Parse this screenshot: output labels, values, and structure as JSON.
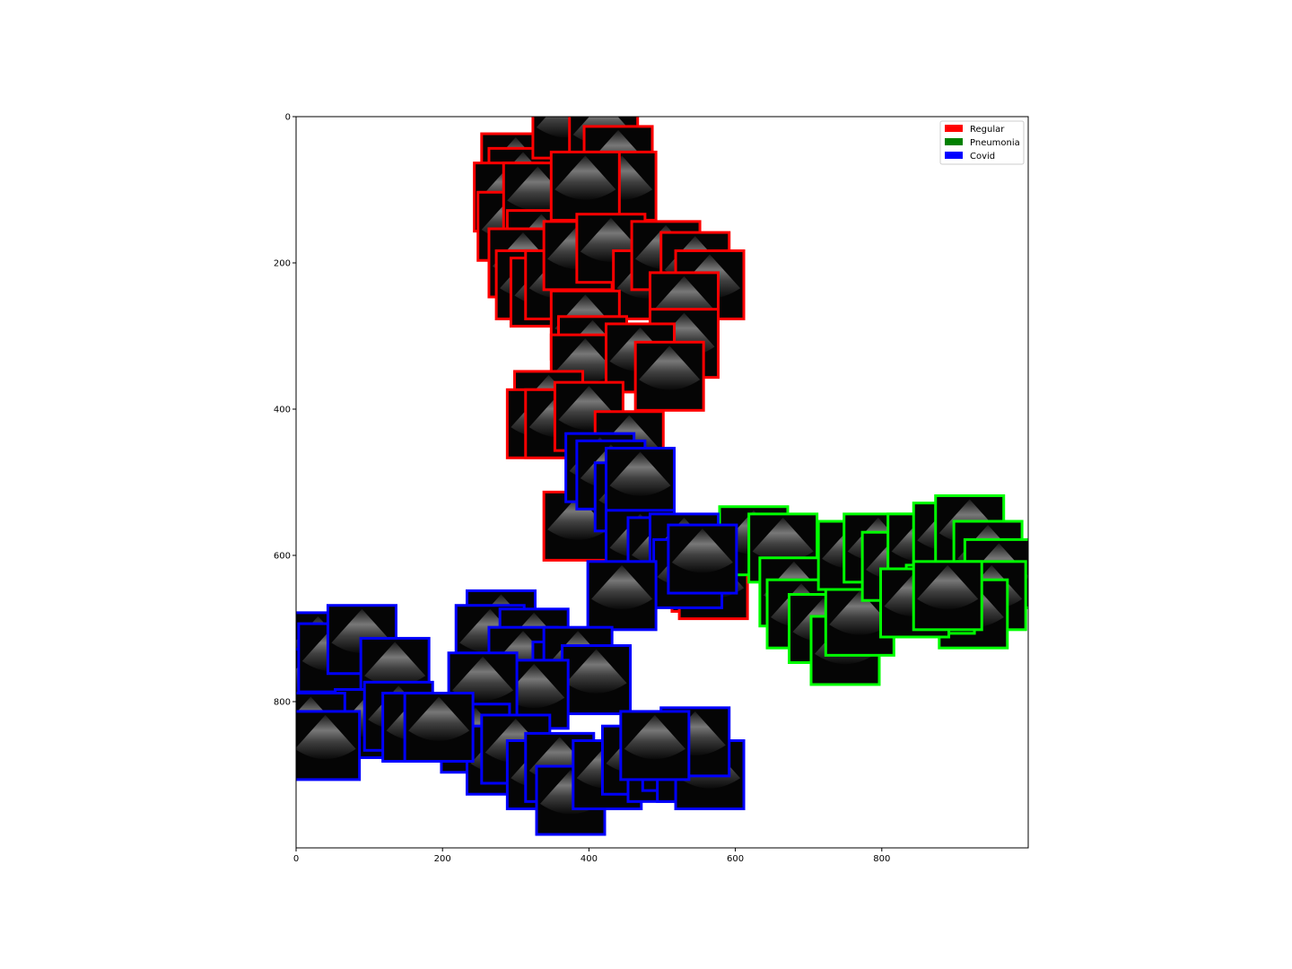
{
  "chart_data": {
    "type": "scatter",
    "title": "",
    "xlabel": "",
    "ylabel": "",
    "xlim": [
      0,
      1000
    ],
    "ylim": [
      0,
      1000
    ],
    "y_inverted": true,
    "xticks": [
      0,
      200,
      400,
      600,
      800
    ],
    "yticks": [
      0,
      200,
      400,
      600,
      800
    ],
    "grid": false,
    "legend_position": "top-right",
    "marker": "image thumbnail with class-colored border",
    "series": [
      {
        "name": "Regular",
        "color": "#ff0000",
        "points": [
          [
            300,
            70
          ],
          [
            310,
            90
          ],
          [
            290,
            110
          ],
          [
            295,
            150
          ],
          [
            330,
            110
          ],
          [
            335,
            175
          ],
          [
            370,
            10
          ],
          [
            420,
            20
          ],
          [
            440,
            60
          ],
          [
            445,
            95
          ],
          [
            395,
            95
          ],
          [
            310,
            200
          ],
          [
            320,
            230
          ],
          [
            340,
            240
          ],
          [
            360,
            230
          ],
          [
            385,
            190
          ],
          [
            430,
            180
          ],
          [
            480,
            230
          ],
          [
            505,
            190
          ],
          [
            545,
            205
          ],
          [
            565,
            230
          ],
          [
            530,
            260
          ],
          [
            530,
            310
          ],
          [
            395,
            285
          ],
          [
            405,
            320
          ],
          [
            395,
            345
          ],
          [
            470,
            330
          ],
          [
            510,
            355
          ],
          [
            345,
            395
          ],
          [
            335,
            420
          ],
          [
            360,
            420
          ],
          [
            400,
            410
          ],
          [
            455,
            450
          ],
          [
            385,
            560
          ],
          [
            560,
            630
          ],
          [
            570,
            640
          ],
          [
            65,
            735
          ],
          [
            35,
            825
          ]
        ]
      },
      {
        "name": "Pneumonia",
        "color": "#00ff00",
        "points": [
          [
            625,
            580
          ],
          [
            665,
            590
          ],
          [
            680,
            650
          ],
          [
            690,
            680
          ],
          [
            720,
            700
          ],
          [
            750,
            730
          ],
          [
            770,
            690
          ],
          [
            760,
            600
          ],
          [
            795,
            590
          ],
          [
            820,
            615
          ],
          [
            855,
            590
          ],
          [
            890,
            575
          ],
          [
            920,
            565
          ],
          [
            945,
            600
          ],
          [
            960,
            625
          ],
          [
            950,
            655
          ],
          [
            925,
            680
          ],
          [
            880,
            660
          ],
          [
            845,
            665
          ],
          [
            890,
            655
          ]
        ]
      },
      {
        "name": "Covid",
        "color": "#0000ff",
        "points": [
          [
            415,
            480
          ],
          [
            430,
            490
          ],
          [
            455,
            520
          ],
          [
            470,
            500
          ],
          [
            470,
            585
          ],
          [
            500,
            595
          ],
          [
            530,
            590
          ],
          [
            535,
            625
          ],
          [
            555,
            605
          ],
          [
            445,
            655
          ],
          [
            280,
            695
          ],
          [
            265,
            715
          ],
          [
            325,
            720
          ],
          [
            310,
            745
          ],
          [
            370,
            765
          ],
          [
            385,
            745
          ],
          [
            410,
            770
          ],
          [
            325,
            790
          ],
          [
            255,
            780
          ],
          [
            245,
            850
          ],
          [
            280,
            880
          ],
          [
            300,
            865
          ],
          [
            30,
            725
          ],
          [
            20,
            775
          ],
          [
            50,
            740
          ],
          [
            90,
            715
          ],
          [
            135,
            760
          ],
          [
            100,
            830
          ],
          [
            20,
            835
          ],
          [
            40,
            860
          ],
          [
            140,
            820
          ],
          [
            165,
            835
          ],
          [
            195,
            835
          ],
          [
            335,
            900
          ],
          [
            360,
            890
          ],
          [
            375,
            935
          ],
          [
            425,
            900
          ],
          [
            465,
            880
          ],
          [
            500,
            890
          ],
          [
            520,
            875
          ],
          [
            540,
            890
          ],
          [
            565,
            900
          ],
          [
            545,
            855
          ],
          [
            490,
            860
          ]
        ]
      }
    ]
  }
}
